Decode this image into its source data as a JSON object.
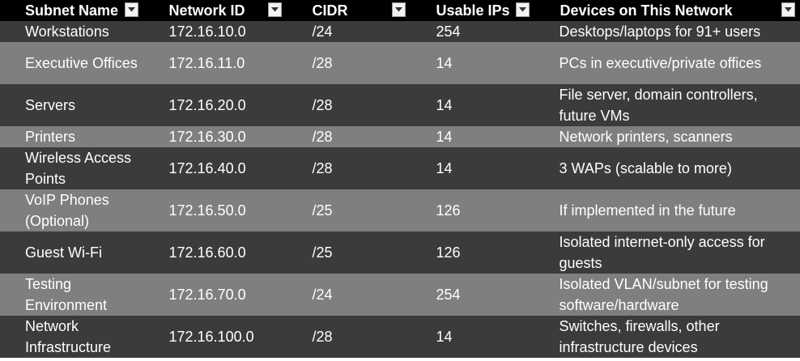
{
  "table": {
    "headers": [
      "Subnet Name",
      "Network ID",
      "CIDR",
      "Usable IPs",
      "Devices on This Network"
    ],
    "rows": [
      [
        "Workstations",
        "172.16.10.0",
        "/24",
        "254",
        "Desktops/laptops for 91+ users"
      ],
      [
        "Executive Offices",
        "172.16.11.0",
        "/28",
        "14",
        "PCs in executive/private offices"
      ],
      [
        "Servers",
        "172.16.20.0",
        "/28",
        "14",
        "File server, domain controllers, future VMs"
      ],
      [
        "Printers",
        "172.16.30.0",
        "/28",
        "14",
        "Network printers, scanners"
      ],
      [
        "Wireless Access Points",
        "172.16.40.0",
        "/28",
        "14",
        "3 WAPs (scalable to more)"
      ],
      [
        "VoIP Phones (Optional)",
        "172.16.50.0",
        "/25",
        "126",
        "If implemented in the future"
      ],
      [
        "Guest Wi-Fi",
        "172.16.60.0",
        "/25",
        "126",
        "Isolated internet-only access for guests"
      ],
      [
        "Testing Environment",
        "172.16.70.0",
        "/24",
        "254",
        "Isolated VLAN/subnet for testing software/hardware"
      ],
      [
        "Network Infrastructure",
        "172.16.100.0",
        "/28",
        "14",
        "Switches, firewalls, other infrastructure devices"
      ]
    ]
  },
  "icons": {
    "filter": "dropdown-arrow-icon"
  },
  "colors": {
    "header_bg": "#000000",
    "row_dark": "#3b3b3b",
    "row_light": "#7f7f7f",
    "text": "#ffffff"
  }
}
